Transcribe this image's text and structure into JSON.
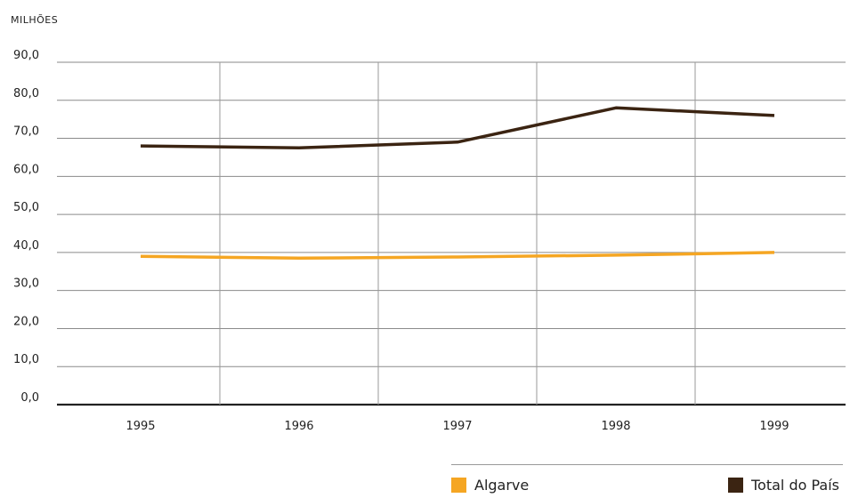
{
  "chart_data": {
    "type": "line",
    "unit_label": "MILHÕES",
    "categories": [
      "1995",
      "1996",
      "1997",
      "1998",
      "1999"
    ],
    "y_ticks": [
      "0,0",
      "10,0",
      "20,0",
      "30,0",
      "40,0",
      "50,0",
      "60,0",
      "70,0",
      "80,0",
      "90,0"
    ],
    "ylim": [
      0,
      90
    ],
    "grid": true,
    "legend_placement": "bottom-right",
    "series": [
      {
        "name": "Algarve",
        "color": "#F5A623",
        "values": [
          39.0,
          38.5,
          38.8,
          39.3,
          40.0
        ]
      },
      {
        "name": "Total do País",
        "color": "#3B2412",
        "values": [
          68.0,
          67.5,
          69.0,
          78.0,
          76.0
        ]
      }
    ]
  }
}
